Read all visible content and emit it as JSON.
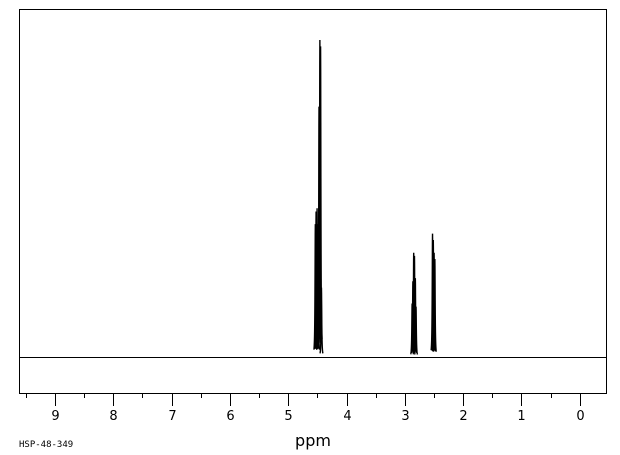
{
  "chart_data": {
    "type": "line",
    "title": "",
    "xlabel": "ppm",
    "ylabel": "",
    "spectrum_id": "HSP-48-349",
    "x_reversed": true,
    "xlim": [
      9.6,
      -0.45
    ],
    "ylim": [
      0,
      100
    ],
    "baseline": 0,
    "grid": false,
    "legend": "none",
    "x_ticks": [
      9,
      8,
      7,
      6,
      5,
      4,
      3,
      2,
      1,
      0
    ],
    "x_tick_labels": [
      "9",
      "8",
      "7",
      "6",
      "5",
      "4",
      "3",
      "2",
      "1",
      "0"
    ],
    "line_color": "#000000",
    "series": [
      {
        "peaks": [
          {
            "x": 4.535,
            "y": 42
          },
          {
            "x": 4.522,
            "y": 46
          },
          {
            "x": 4.505,
            "y": 47
          },
          {
            "x": 4.488,
            "y": 42
          },
          {
            "x": 4.472,
            "y": 79
          },
          {
            "x": 4.457,
            "y": 100
          },
          {
            "x": 4.445,
            "y": 98
          },
          {
            "x": 4.43,
            "y": 22
          },
          {
            "x": 2.875,
            "y": 17
          },
          {
            "x": 2.862,
            "y": 24
          },
          {
            "x": 2.848,
            "y": 33
          },
          {
            "x": 2.835,
            "y": 32
          },
          {
            "x": 2.82,
            "y": 25
          },
          {
            "x": 2.808,
            "y": 16
          },
          {
            "x": 2.525,
            "y": 39
          },
          {
            "x": 2.512,
            "y": 37
          },
          {
            "x": 2.498,
            "y": 33
          },
          {
            "x": 2.485,
            "y": 31
          }
        ]
      }
    ]
  }
}
